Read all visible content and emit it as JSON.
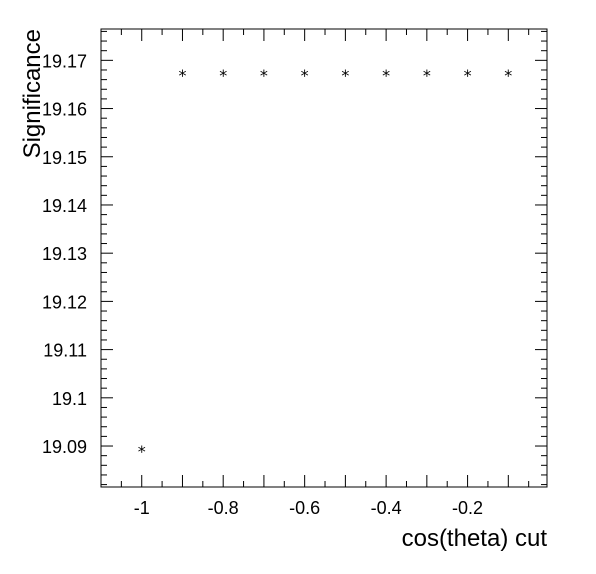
{
  "chart_data": {
    "type": "scatter",
    "xlabel": "cos(theta) cut",
    "ylabel": "Significance",
    "xlim": [
      -1.1,
      -0.005
    ],
    "ylim": [
      19.0815,
      19.1765
    ],
    "grid": false,
    "legend": "none",
    "marker": "*",
    "x_ticks": [
      -1,
      -0.9,
      -0.8,
      -0.7,
      -0.6,
      -0.5,
      -0.4,
      -0.3,
      -0.2,
      -0.1
    ],
    "x_tick_labels": [
      {
        "value": -1,
        "label": "-1"
      },
      {
        "value": -0.8,
        "label": "-0.8"
      },
      {
        "value": -0.6,
        "label": "-0.6"
      },
      {
        "value": -0.4,
        "label": "-0.4"
      },
      {
        "value": -0.2,
        "label": "-0.2"
      }
    ],
    "y_tick_labels": [
      {
        "value": 19.09,
        "label": "19.09"
      },
      {
        "value": 19.1,
        "label": "19.1"
      },
      {
        "value": 19.11,
        "label": "19.11"
      },
      {
        "value": 19.12,
        "label": "19.12"
      },
      {
        "value": 19.13,
        "label": "19.13"
      },
      {
        "value": 19.14,
        "label": "19.14"
      },
      {
        "value": 19.15,
        "label": "19.15"
      },
      {
        "value": 19.16,
        "label": "19.16"
      },
      {
        "value": 19.17,
        "label": "19.17"
      }
    ],
    "x": [
      -1.0,
      -0.9,
      -0.8,
      -0.7,
      -0.6,
      -0.5,
      -0.4,
      -0.3,
      -0.2,
      -0.1
    ],
    "y": [
      19.089,
      19.167,
      19.167,
      19.167,
      19.167,
      19.167,
      19.167,
      19.167,
      19.167,
      19.167
    ]
  }
}
